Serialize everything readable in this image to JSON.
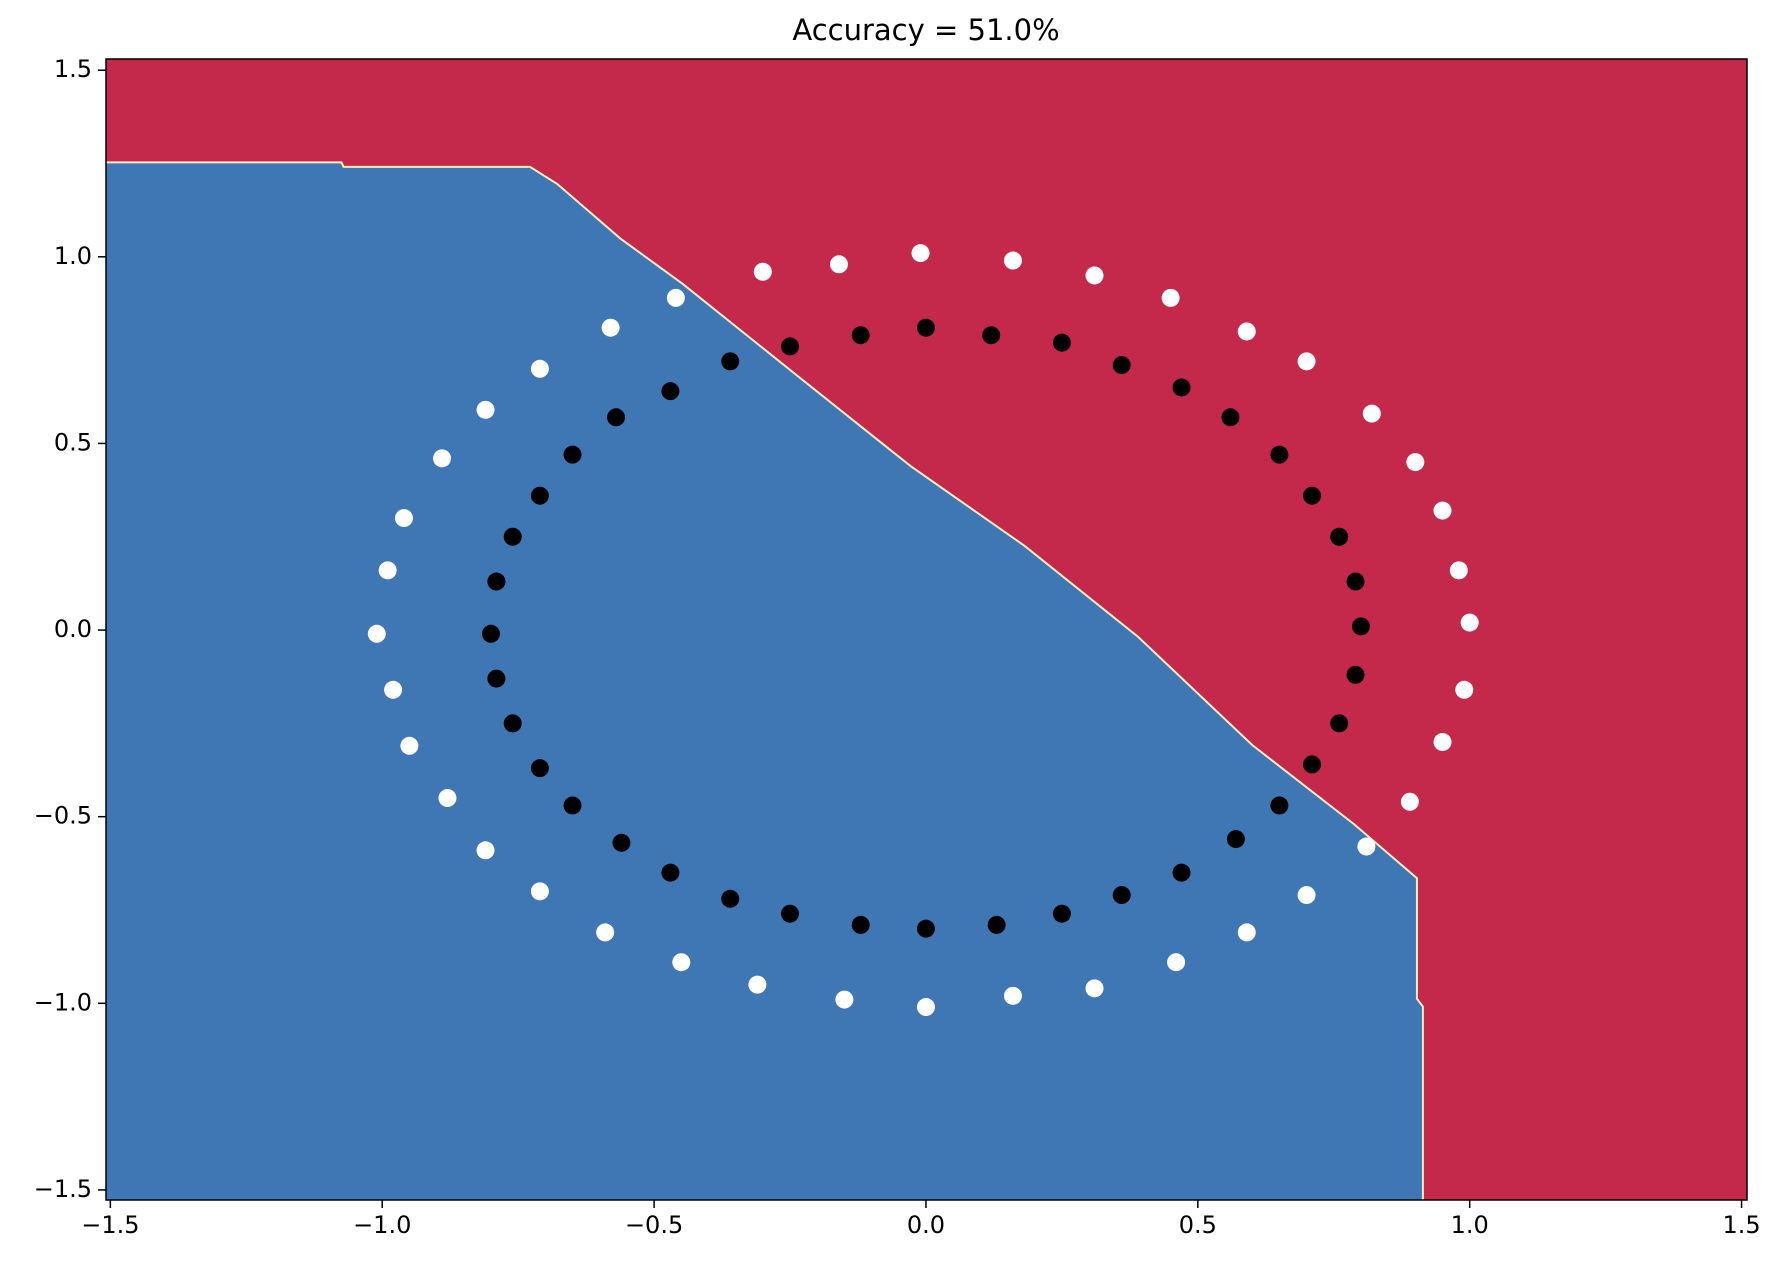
{
  "chart_data": {
    "type": "scatter",
    "title": "Accuracy = 51.0%",
    "xlim": [
      -1.508,
      1.51
    ],
    "ylim": [
      -1.527,
      1.53
    ],
    "xticks": [
      {
        "value": -1.5,
        "label": "−1.5"
      },
      {
        "value": -1,
        "label": "−1.0"
      },
      {
        "value": -0.5,
        "label": "−0.5"
      },
      {
        "value": 0,
        "label": "0.0"
      },
      0.5,
      {
        "value": 1,
        "label": "1.0"
      },
      1.5
    ],
    "yticks": [
      {
        "value": -1.5,
        "label": "−1.5"
      },
      {
        "value": -1,
        "label": "−1.0"
      },
      {
        "value": -0.5,
        "label": "−0.5"
      },
      {
        "value": 0,
        "label": "0.0"
      },
      0.5,
      {
        "value": 1,
        "label": "1.0"
      },
      1.5
    ],
    "region_colors": {
      "upper": "#c4294b",
      "lower": "#3f76b4",
      "edge": "#f3eec0"
    },
    "boundary": {
      "x": [
        -1.508,
        -1.075,
        -1.071,
        -0.728,
        -0.678,
        -0.562,
        -0.447,
        -0.238,
        -0.028,
        0.181,
        0.39,
        0.6,
        0.788,
        0.903,
        0.903,
        0.914,
        0.914
      ],
      "y": [
        1.253,
        1.253,
        1.241,
        1.241,
        1.195,
        1.049,
        0.927,
        0.683,
        0.439,
        0.226,
        -0.018,
        -0.308,
        -0.521,
        -0.665,
        -0.988,
        -1.009,
        -1.527
      ]
    },
    "series": [
      {
        "color": "#ffffff",
        "x": [
          1.0,
          0.98,
          0.95,
          0.9,
          0.82,
          0.7,
          0.59,
          0.45,
          0.31,
          0.16,
          -0.01,
          -0.16,
          -0.3,
          -0.46,
          -0.58,
          -0.71,
          -0.81,
          -0.89,
          -0.96,
          -0.99,
          -1.01,
          -0.98,
          -0.95,
          -0.88,
          -0.81,
          -0.71,
          -0.59,
          -0.45,
          -0.31,
          -0.15,
          0.0,
          0.16,
          0.31,
          0.46,
          0.59,
          0.7,
          0.81,
          0.89,
          0.95,
          0.99
        ],
        "y": [
          0.02,
          0.16,
          0.32,
          0.45,
          0.58,
          0.72,
          0.8,
          0.89,
          0.95,
          0.99,
          1.01,
          0.98,
          0.96,
          0.89,
          0.81,
          0.7,
          0.59,
          0.46,
          0.3,
          0.16,
          -0.01,
          -0.16,
          -0.31,
          -0.45,
          -0.59,
          -0.7,
          -0.81,
          -0.89,
          -0.95,
          -0.99,
          -1.01,
          -0.98,
          -0.96,
          -0.89,
          -0.81,
          -0.71,
          -0.58,
          -0.46,
          -0.3,
          -0.16
        ]
      },
      {
        "color": "#000000",
        "x": [
          0.8,
          0.79,
          0.76,
          0.71,
          0.65,
          0.56,
          0.47,
          0.36,
          0.25,
          0.12,
          0.0,
          -0.12,
          -0.25,
          -0.36,
          -0.47,
          -0.57,
          -0.65,
          -0.71,
          -0.76,
          -0.79,
          -0.8,
          -0.79,
          -0.76,
          -0.71,
          -0.65,
          -0.56,
          -0.47,
          -0.36,
          -0.25,
          -0.12,
          0.0,
          0.13,
          0.25,
          0.36,
          0.47,
          0.57,
          0.65,
          0.71,
          0.76,
          0.79
        ],
        "y": [
          0.01,
          0.13,
          0.25,
          0.36,
          0.47,
          0.57,
          0.65,
          0.71,
          0.77,
          0.79,
          0.81,
          0.79,
          0.76,
          0.72,
          0.64,
          0.57,
          0.47,
          0.36,
          0.25,
          0.13,
          -0.01,
          -0.13,
          -0.25,
          -0.37,
          -0.47,
          -0.57,
          -0.65,
          -0.72,
          -0.76,
          -0.79,
          -0.8,
          -0.79,
          -0.76,
          -0.71,
          -0.65,
          -0.56,
          -0.47,
          -0.36,
          -0.25,
          -0.12
        ]
      }
    ]
  }
}
